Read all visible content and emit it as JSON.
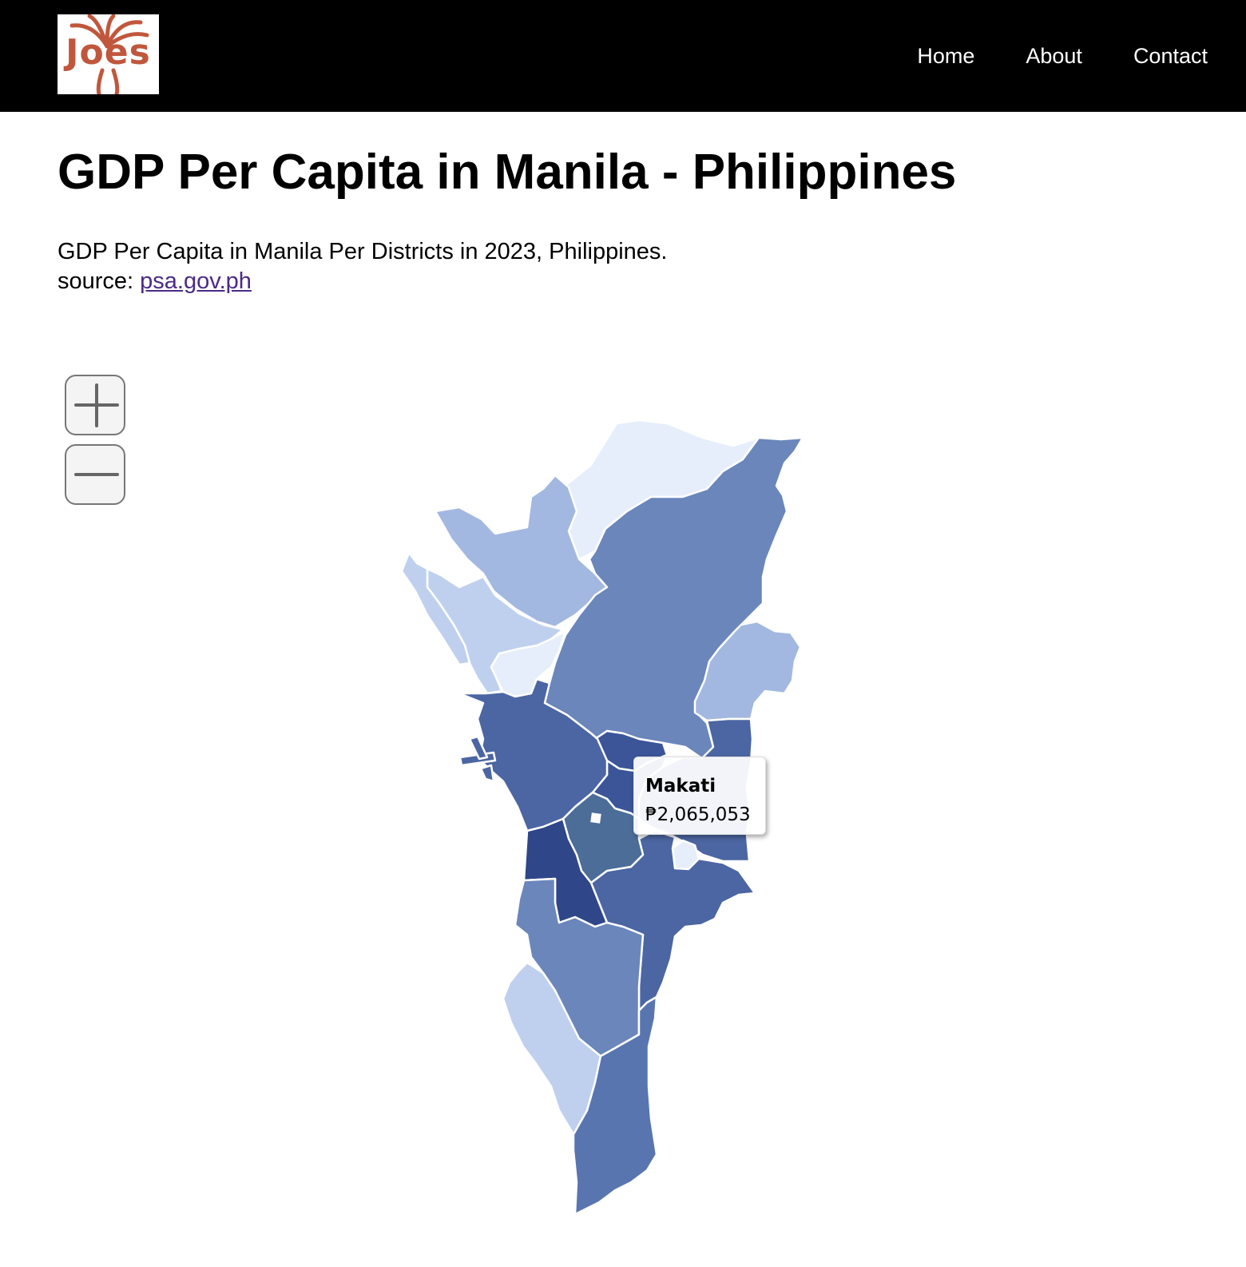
{
  "header": {
    "logo_text": "Joes",
    "nav": [
      {
        "label": "Home"
      },
      {
        "label": "About"
      },
      {
        "label": "Contact"
      }
    ]
  },
  "page": {
    "title": "GDP Per Capita in Manila - Philippines",
    "description": "GDP Per Capita in Manila Per Districts in 2023, Philippines.",
    "source_label": "source:",
    "source_link": "psa.gov.ph"
  },
  "map": {
    "zoom_in_icon": "plus-icon",
    "zoom_out_icon": "minus-icon",
    "colors": {
      "lightest": "#e6eefb",
      "light": "#bfd0ef",
      "light_mid": "#a3b8e0",
      "mid": "#6a86bb",
      "mid_dark": "#5875b0",
      "dark": "#4b66a2",
      "darker": "#3b5598",
      "darkest": "#2f4689",
      "highlight": "#4b6d98",
      "border": "#ffffff",
      "logo_brand": "#c0573d"
    },
    "tooltip": {
      "name": "Makati",
      "value": "₱2,065,053"
    }
  }
}
